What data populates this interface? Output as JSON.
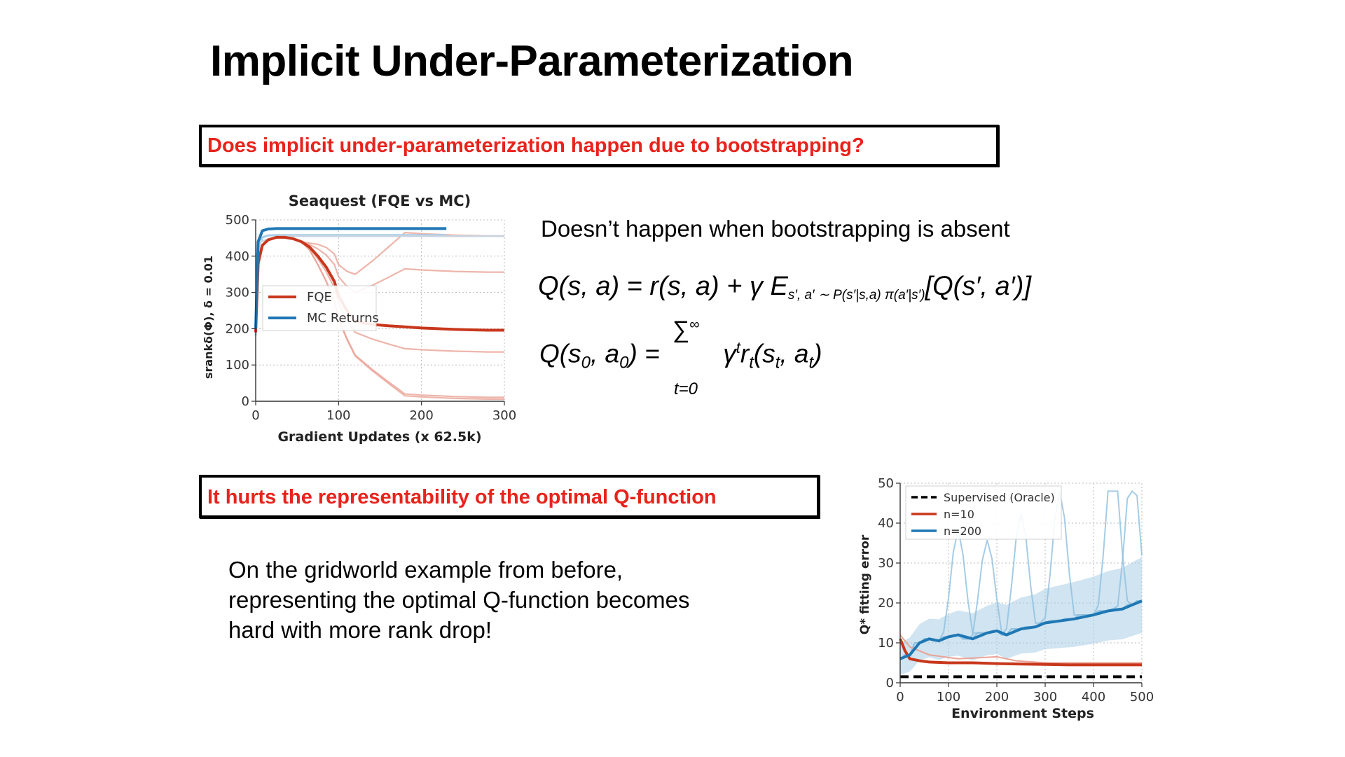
{
  "slide": {
    "title": "Implicit Under-Parameterization",
    "question1": "Does implicit under-parameterization happen due to bootstrapping?",
    "question2": "It hurts the representability of the optimal Q-function",
    "doesnt_happen": "Doesn’t happen when bootstrapping is absent",
    "gridworld_lines": [
      "On the gridworld example from before,",
      "representing the optimal Q-function becomes",
      "hard with more rank drop!"
    ],
    "equation1": "Q(s, a) = r(s, a) + γ E",
    "equation1_sub": "s′, a′ ∼ P(s′|s,a) π(a′|s′)",
    "equation1_tail": "[Q(s′, a′)]",
    "equation2_lhs": "Q(s",
    "equation2_rhs": "γ",
    "equation2_sum": "∑",
    "equation2_sum_top": "∞",
    "equation2_index": "t=0",
    "colors": {
      "red": "#e8231c",
      "fqe": "#c8371c",
      "mc": "#1f77b4",
      "light_red": "#eaa396",
      "light_blue": "#a9cde6"
    }
  },
  "chart_data": [
    {
      "type": "line",
      "title": "Seaquest (FQE vs MC)",
      "xlabel": "Gradient Updates (x 62.5k)",
      "ylabel": "srankδ(Φ), δ = 0.01",
      "xlim": [
        0,
        300
      ],
      "ylim": [
        0,
        500
      ],
      "xticks": [
        0,
        100,
        200,
        300
      ],
      "yticks": [
        0,
        100,
        200,
        300,
        400,
        500
      ],
      "legend_position": "center-left",
      "series": [
        {
          "name": "FQE",
          "color": "#c8371c",
          "x": [
            0,
            3,
            8,
            15,
            25,
            35,
            45,
            55,
            65,
            75,
            85,
            95,
            100,
            110,
            120,
            140,
            160,
            180,
            200,
            220,
            240,
            260,
            280,
            300
          ],
          "y": [
            190,
            380,
            430,
            445,
            452,
            452,
            448,
            440,
            425,
            400,
            370,
            330,
            290,
            250,
            220,
            212,
            208,
            205,
            202,
            200,
            198,
            197,
            196,
            196
          ]
        },
        {
          "name": "MC Returns",
          "color": "#1f77b4",
          "x": [
            0,
            3,
            8,
            15,
            25,
            50,
            100,
            150,
            200,
            230
          ],
          "y": [
            200,
            440,
            470,
            475,
            476,
            476,
            476,
            476,
            476,
            476
          ]
        }
      ]
    },
    {
      "type": "line",
      "xlabel": "Environment Steps",
      "ylabel": "Q* fitting error",
      "xlim": [
        0,
        500
      ],
      "ylim": [
        0,
        50
      ],
      "xticks": [
        0,
        100,
        200,
        300,
        400,
        500
      ],
      "yticks": [
        0,
        10,
        20,
        30,
        40,
        50
      ],
      "legend_position": "top-left",
      "series": [
        {
          "name": "Supervised (Oracle)",
          "color": "#000000",
          "dashed": true,
          "x": [
            0,
            500
          ],
          "y": [
            1.5,
            1.5
          ]
        },
        {
          "name": "n=10",
          "color": "#c8371c",
          "x": [
            0,
            10,
            20,
            40,
            60,
            100,
            150,
            200,
            250,
            300,
            350,
            400,
            450,
            500
          ],
          "y": [
            11,
            8,
            6,
            5.5,
            5.2,
            5,
            5,
            4.8,
            4.7,
            4.6,
            4.5,
            4.5,
            4.5,
            4.5
          ]
        },
        {
          "name": "n=200",
          "color": "#1f77b4",
          "x": [
            0,
            20,
            40,
            60,
            80,
            100,
            120,
            150,
            180,
            200,
            220,
            250,
            280,
            300,
            330,
            360,
            400,
            430,
            460,
            480,
            500
          ],
          "y": [
            6,
            7,
            10,
            11,
            10.5,
            11.5,
            12,
            11,
            12.5,
            13,
            12,
            13.5,
            14,
            15,
            15.5,
            16,
            17,
            18,
            18.5,
            19.5,
            20.5
          ]
        }
      ]
    }
  ]
}
